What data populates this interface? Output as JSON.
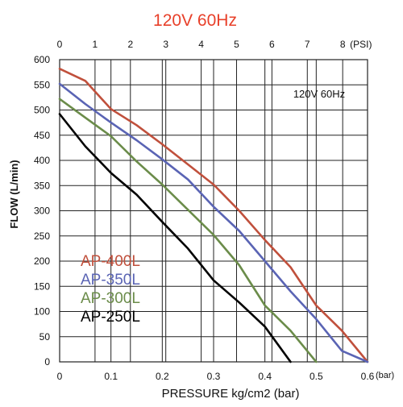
{
  "page_title": "120V 60Hz",
  "chart_data": {
    "type": "line",
    "title": "120V 60Hz",
    "inner_label": "120V 60Hz",
    "xlabel": "PRESSURE kg/cm2 (bar)",
    "ylabel": "FLOW  (L/min)",
    "x_unit": "(bar)",
    "top_axis_unit": "(PSI)",
    "xlim": [
      0,
      0.6
    ],
    "ylim": [
      0,
      600
    ],
    "x_ticks": [
      0,
      0.1,
      0.2,
      0.3,
      0.4,
      0.5,
      0.6
    ],
    "x_tick_labels": [
      "0",
      "0.1",
      "0.2",
      "0.3",
      "0.4",
      "0.5",
      "0.6"
    ],
    "y_ticks": [
      0,
      50,
      100,
      150,
      200,
      250,
      300,
      350,
      400,
      450,
      500,
      550,
      600
    ],
    "y_tick_labels": [
      "0",
      "50",
      "100",
      "150",
      "200",
      "250",
      "300",
      "350",
      "400",
      "450",
      "500",
      "550",
      "600"
    ],
    "psi_ticks": [
      0,
      1,
      2,
      3,
      4,
      5,
      6,
      7,
      8
    ],
    "psi_tick_labels": [
      "0",
      "1",
      "2",
      "3",
      "4",
      "5",
      "6",
      "7",
      "8"
    ],
    "psi_per_bar": 14.5038,
    "grid": true,
    "legend_position": "bottom-left",
    "colors": {
      "title": "#e8402a",
      "grid": "#222222",
      "text": "#111111"
    },
    "series": [
      {
        "name": "AP-400L",
        "color": "#c0503c",
        "points": [
          [
            0,
            582
          ],
          [
            0.05,
            558
          ],
          [
            0.1,
            502
          ],
          [
            0.15,
            470
          ],
          [
            0.2,
            432
          ],
          [
            0.25,
            392
          ],
          [
            0.3,
            352
          ],
          [
            0.35,
            300
          ],
          [
            0.4,
            242
          ],
          [
            0.45,
            188
          ],
          [
            0.5,
            112
          ],
          [
            0.55,
            62
          ],
          [
            0.6,
            0
          ]
        ]
      },
      {
        "name": "AP-350L",
        "color": "#5a64b4",
        "points": [
          [
            0,
            552
          ],
          [
            0.05,
            512
          ],
          [
            0.1,
            475
          ],
          [
            0.15,
            440
          ],
          [
            0.2,
            402
          ],
          [
            0.25,
            362
          ],
          [
            0.3,
            308
          ],
          [
            0.35,
            260
          ],
          [
            0.4,
            200
          ],
          [
            0.45,
            140
          ],
          [
            0.5,
            85
          ],
          [
            0.55,
            22
          ],
          [
            0.6,
            0
          ]
        ]
      },
      {
        "name": "AP-300L",
        "color": "#6b8c4a",
        "points": [
          [
            0,
            522
          ],
          [
            0.05,
            485
          ],
          [
            0.1,
            448
          ],
          [
            0.15,
            398
          ],
          [
            0.2,
            352
          ],
          [
            0.25,
            302
          ],
          [
            0.3,
            252
          ],
          [
            0.35,
            192
          ],
          [
            0.4,
            112
          ],
          [
            0.45,
            62
          ],
          [
            0.5,
            0
          ]
        ]
      },
      {
        "name": "AP-250L",
        "color": "#000000",
        "points": [
          [
            0,
            492
          ],
          [
            0.05,
            428
          ],
          [
            0.1,
            375
          ],
          [
            0.15,
            332
          ],
          [
            0.2,
            278
          ],
          [
            0.25,
            225
          ],
          [
            0.3,
            162
          ],
          [
            0.35,
            118
          ],
          [
            0.4,
            70
          ],
          [
            0.45,
            0
          ]
        ]
      }
    ]
  }
}
